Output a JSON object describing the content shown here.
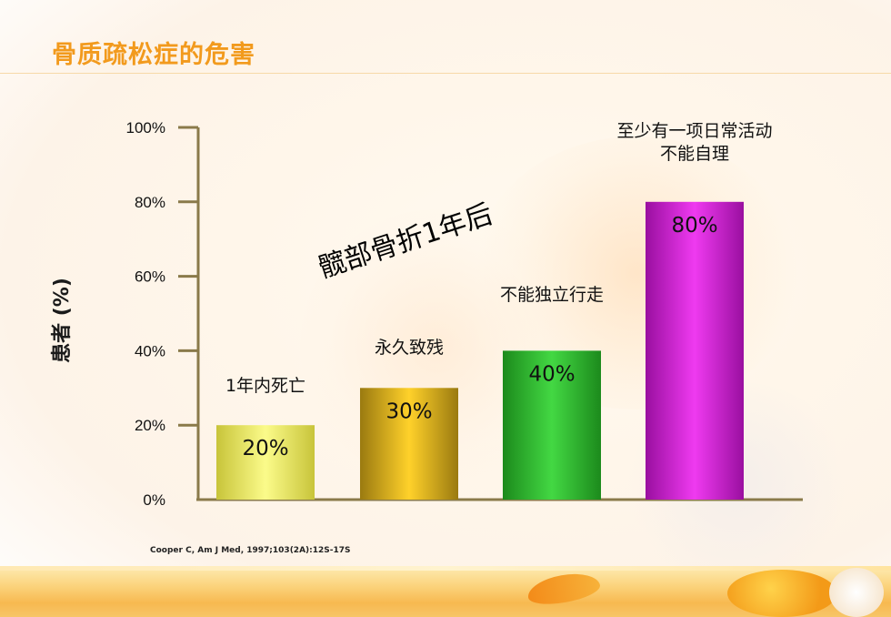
{
  "page": {
    "title": "骨质疏松症的危害",
    "annotation": "髋部骨折1年后",
    "source": "Cooper C, Am J Med, 1997;103(2A):12S-17S"
  },
  "colors": {
    "title": "#f29a1d",
    "axis": "#8a7a4a"
  },
  "chart_data": {
    "type": "bar",
    "title": "",
    "xlabel": "",
    "ylabel": "患者 (%)",
    "ylim": [
      0,
      100
    ],
    "yticks": [
      0,
      20,
      40,
      60,
      80,
      100
    ],
    "ytick_labels": [
      "0%",
      "20%",
      "40%",
      "60%",
      "80%",
      "100%"
    ],
    "grid": false,
    "legend": "none",
    "categories": [
      "1年内死亡",
      "永久致残",
      "不能独立行走",
      "至少有一项日常活动\n不能自理"
    ],
    "values": [
      20,
      30,
      40,
      80
    ],
    "value_labels": [
      "20%",
      "30%",
      "40%",
      "80%"
    ],
    "bar_colors": [
      "#f3f070",
      "#f2c21a",
      "#35c235",
      "#d21fd6"
    ]
  }
}
